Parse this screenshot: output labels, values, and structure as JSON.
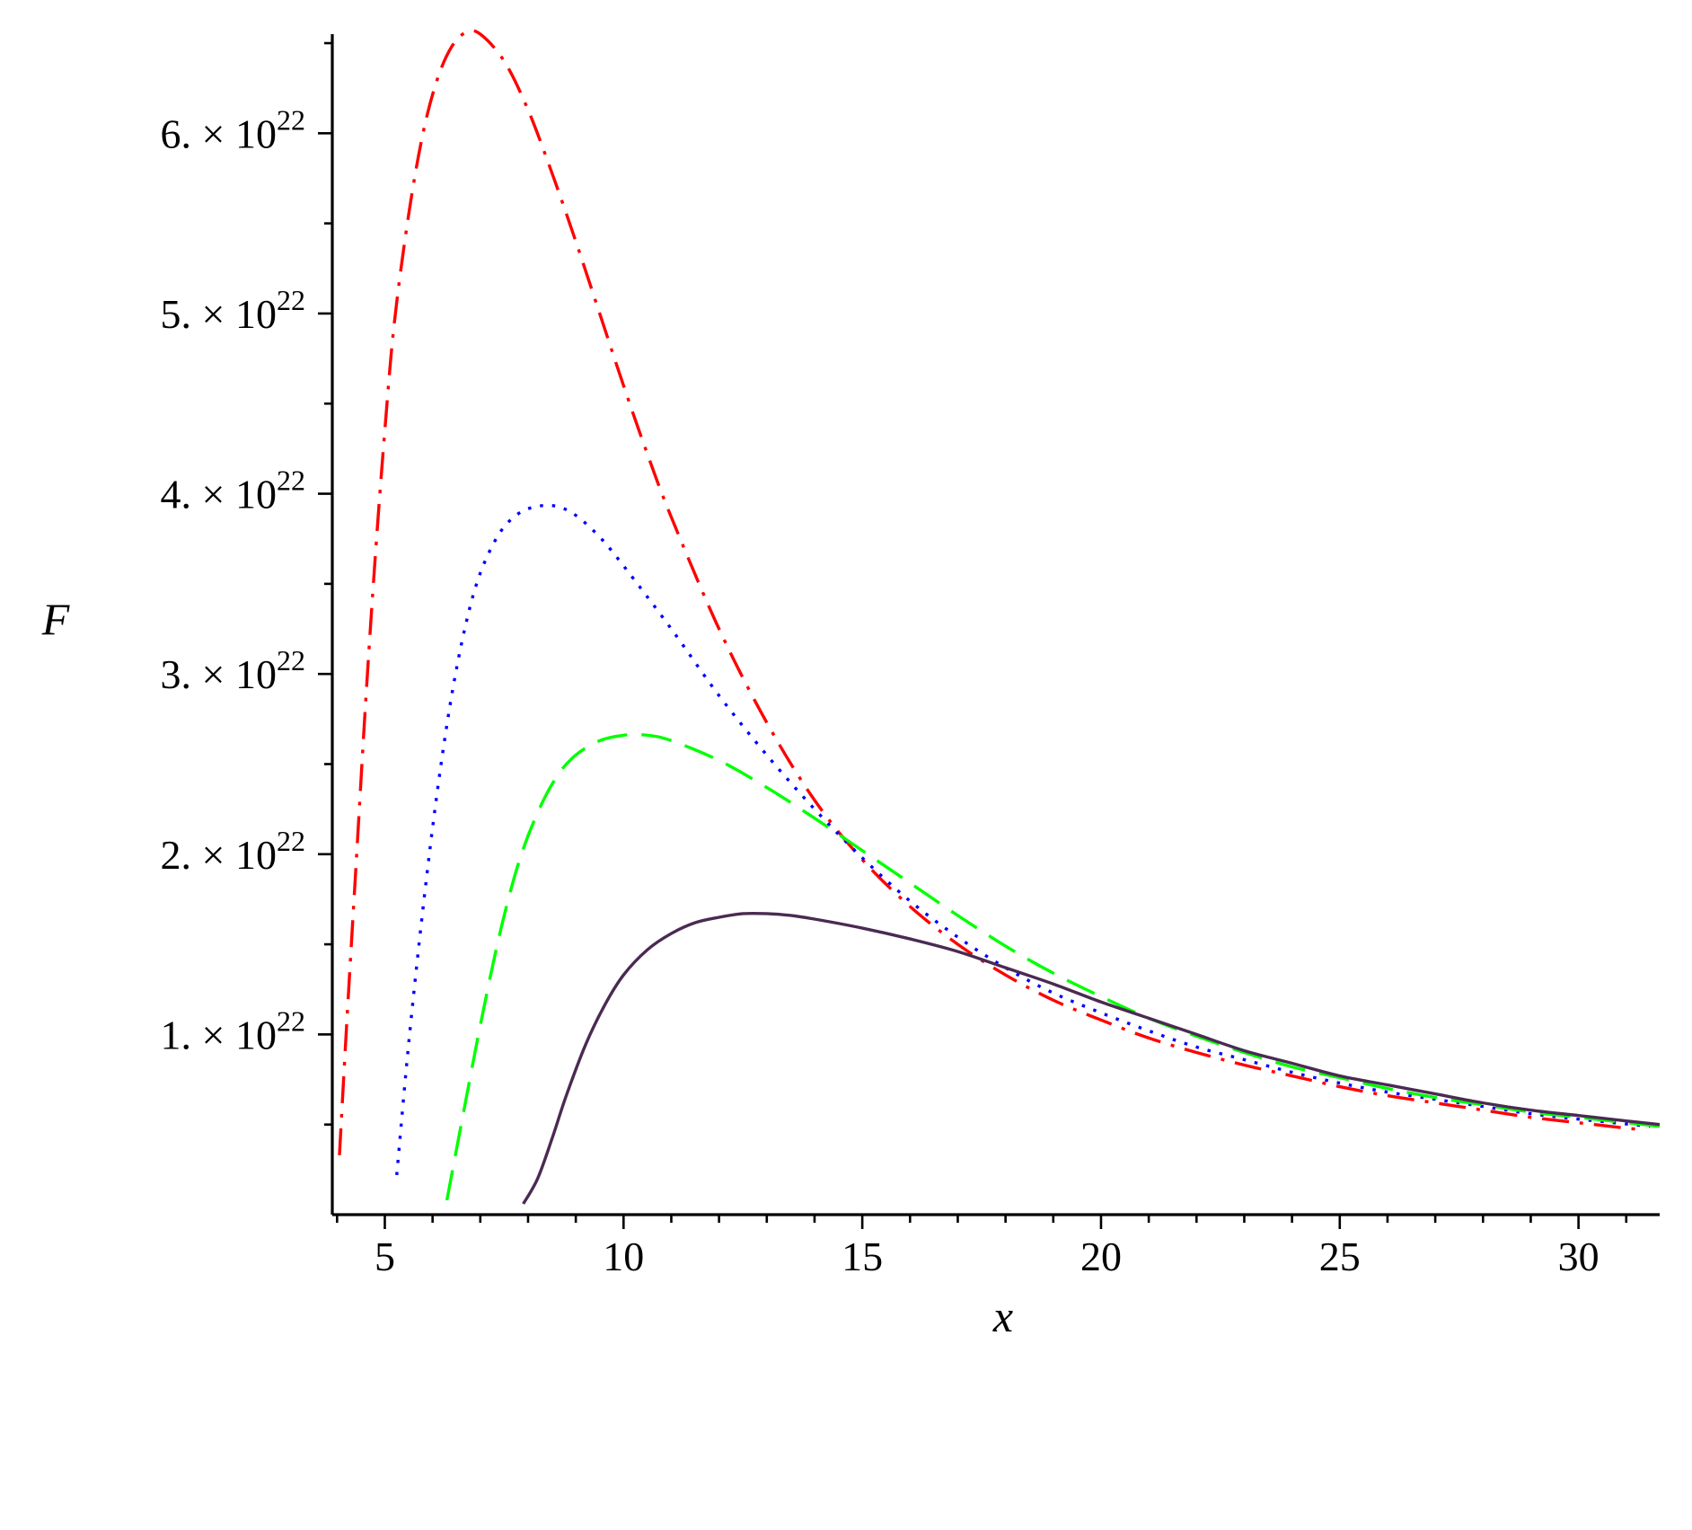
{
  "chart_data": {
    "type": "line",
    "title": "",
    "xlabel": "x",
    "ylabel": "F",
    "xlim": [
      3.9,
      31.7
    ],
    "ylim": [
      0,
      6.55e+22
    ],
    "grid": false,
    "legend": "none",
    "x_ticks": [
      {
        "value": 5,
        "label": "5"
      },
      {
        "value": 10,
        "label": "10"
      },
      {
        "value": 15,
        "label": "15"
      },
      {
        "value": 20,
        "label": "20"
      },
      {
        "value": 25,
        "label": "25"
      },
      {
        "value": 30,
        "label": "30"
      }
    ],
    "y_ticks": [
      {
        "value": 1e+22,
        "mantissa": "1. × 10",
        "exponent": "22"
      },
      {
        "value": 2e+22,
        "mantissa": "2. × 10",
        "exponent": "22"
      },
      {
        "value": 3e+22,
        "mantissa": "3. × 10",
        "exponent": "22"
      },
      {
        "value": 4e+22,
        "mantissa": "4. × 10",
        "exponent": "22"
      },
      {
        "value": 5e+22,
        "mantissa": "5. × 10",
        "exponent": "22"
      },
      {
        "value": 6e+22,
        "mantissa": "6. × 10",
        "exponent": "22"
      }
    ],
    "series": [
      {
        "color": "#ff0000",
        "dash": "dashdot",
        "points": [
          [
            4.05,
            3.3e+21
          ],
          [
            4.2,
            1.05e+22
          ],
          [
            4.4,
            1.95e+22
          ],
          [
            4.6,
            2.85e+22
          ],
          [
            4.8,
            3.65e+22
          ],
          [
            5.0,
            4.35e+22
          ],
          [
            5.2,
            4.95e+22
          ],
          [
            5.5,
            5.55e+22
          ],
          [
            5.8,
            6e+22
          ],
          [
            6.1,
            6.3e+22
          ],
          [
            6.4,
            6.48e+22
          ],
          [
            6.7,
            6.56e+22
          ],
          [
            7.0,
            6.55e+22
          ],
          [
            7.5,
            6.4e+22
          ],
          [
            8.0,
            6.13e+22
          ],
          [
            8.5,
            5.78e+22
          ],
          [
            9.0,
            5.4e+22
          ],
          [
            9.5,
            5e+22
          ],
          [
            10.0,
            4.6e+22
          ],
          [
            10.5,
            4.22e+22
          ],
          [
            11.0,
            3.87e+22
          ],
          [
            12.0,
            3.25e+22
          ],
          [
            13.0,
            2.73e+22
          ],
          [
            14.0,
            2.3e+22
          ],
          [
            15.0,
            1.97e+22
          ],
          [
            16.0,
            1.71e+22
          ],
          [
            17.0,
            1.5e+22
          ],
          [
            18.0,
            1.33e+22
          ],
          [
            19.0,
            1.19e+22
          ],
          [
            20.0,
            1.08e+22
          ],
          [
            21.0,
            9.8e+21
          ],
          [
            22.0,
            9e+21
          ],
          [
            23.0,
            8.3e+21
          ],
          [
            24.0,
            7.7e+21
          ],
          [
            25.0,
            7.1e+21
          ],
          [
            26.0,
            6.6e+21
          ],
          [
            27.0,
            6.2e+21
          ],
          [
            28.0,
            5.8e+21
          ],
          [
            29.0,
            5.4e+21
          ],
          [
            30.0,
            5.1e+21
          ],
          [
            31.0,
            4.8e+21
          ],
          [
            31.4,
            4.7e+21
          ]
        ]
      },
      {
        "color": "#0000ff",
        "dash": "dot",
        "points": [
          [
            5.25,
            2.2e+21
          ],
          [
            5.5,
            9.5e+21
          ],
          [
            5.8,
            1.7e+22
          ],
          [
            6.1,
            2.35e+22
          ],
          [
            6.4,
            2.88e+22
          ],
          [
            6.7,
            3.28e+22
          ],
          [
            7.0,
            3.56e+22
          ],
          [
            7.4,
            3.78e+22
          ],
          [
            7.8,
            3.89e+22
          ],
          [
            8.2,
            3.93e+22
          ],
          [
            8.6,
            3.93e+22
          ],
          [
            9.0,
            3.88e+22
          ],
          [
            9.5,
            3.76e+22
          ],
          [
            10.0,
            3.6e+22
          ],
          [
            11.0,
            3.25e+22
          ],
          [
            12.0,
            2.88e+22
          ],
          [
            13.0,
            2.55e+22
          ],
          [
            14.0,
            2.25e+22
          ],
          [
            15.0,
            1.98e+22
          ],
          [
            16.0,
            1.74e+22
          ],
          [
            17.0,
            1.54e+22
          ],
          [
            18.0,
            1.37e+22
          ],
          [
            19.0,
            1.23e+22
          ],
          [
            20.0,
            1.12e+22
          ],
          [
            21.0,
            1.02e+22
          ],
          [
            22.0,
            9.3e+21
          ],
          [
            23.0,
            8.6e+21
          ],
          [
            24.0,
            7.9e+21
          ],
          [
            25.0,
            7.3e+21
          ],
          [
            26.0,
            6.8e+21
          ],
          [
            27.0,
            6.4e+21
          ],
          [
            28.0,
            6e+21
          ],
          [
            29.0,
            5.6e+21
          ],
          [
            30.0,
            5.3e+21
          ],
          [
            31.5,
            4.9e+21
          ]
        ]
      },
      {
        "color": "#00ff00",
        "dash": "dash",
        "points": [
          [
            6.3,
            8e+20
          ],
          [
            6.6,
            5e+21
          ],
          [
            7.0,
            1.05e+22
          ],
          [
            7.4,
            1.55e+22
          ],
          [
            7.8,
            1.95e+22
          ],
          [
            8.2,
            2.23e+22
          ],
          [
            8.6,
            2.43e+22
          ],
          [
            9.0,
            2.55e+22
          ],
          [
            9.5,
            2.63e+22
          ],
          [
            10.0,
            2.66e+22
          ],
          [
            10.5,
            2.66e+22
          ],
          [
            11.0,
            2.63e+22
          ],
          [
            12.0,
            2.52e+22
          ],
          [
            13.0,
            2.37e+22
          ],
          [
            14.0,
            2.2e+22
          ],
          [
            15.0,
            2.02e+22
          ],
          [
            16.0,
            1.84e+22
          ],
          [
            17.0,
            1.66e+22
          ],
          [
            18.0,
            1.49e+22
          ],
          [
            19.0,
            1.34e+22
          ],
          [
            20.0,
            1.21e+22
          ],
          [
            21.0,
            1.09e+22
          ],
          [
            22.0,
            9.9e+21
          ],
          [
            23.0,
            9e+21
          ],
          [
            24.0,
            8.2e+21
          ],
          [
            25.0,
            7.6e+21
          ],
          [
            26.0,
            7e+21
          ],
          [
            27.0,
            6.5e+21
          ],
          [
            28.0,
            6.1e+21
          ],
          [
            29.0,
            5.7e+21
          ],
          [
            30.0,
            5.4e+21
          ],
          [
            31.7,
            4.9e+21
          ]
        ]
      },
      {
        "color": "#4a2a52",
        "dash": "solid",
        "points": [
          [
            7.9,
            6e+20
          ],
          [
            8.2,
            2e+21
          ],
          [
            8.5,
            4.2e+21
          ],
          [
            8.8,
            6.6e+21
          ],
          [
            9.2,
            9.4e+21
          ],
          [
            9.6,
            1.16e+22
          ],
          [
            10.0,
            1.33e+22
          ],
          [
            10.5,
            1.47e+22
          ],
          [
            11.0,
            1.56e+22
          ],
          [
            11.5,
            1.62e+22
          ],
          [
            12.0,
            1.65e+22
          ],
          [
            12.5,
            1.67e+22
          ],
          [
            13.0,
            1.67e+22
          ],
          [
            13.5,
            1.66e+22
          ],
          [
            14.0,
            1.64e+22
          ],
          [
            15.0,
            1.59e+22
          ],
          [
            16.0,
            1.53e+22
          ],
          [
            17.0,
            1.46e+22
          ],
          [
            18.0,
            1.37e+22
          ],
          [
            19.0,
            1.28e+22
          ],
          [
            20.0,
            1.18e+22
          ],
          [
            21.0,
            1.09e+22
          ],
          [
            22.0,
            1e+22
          ],
          [
            23.0,
            9.1e+21
          ],
          [
            24.0,
            8.4e+21
          ],
          [
            25.0,
            7.7e+21
          ],
          [
            26.0,
            7.2e+21
          ],
          [
            27.0,
            6.7e+21
          ],
          [
            28.0,
            6.2e+21
          ],
          [
            29.0,
            5.8e+21
          ],
          [
            30.0,
            5.5e+21
          ],
          [
            31.0,
            5.2e+21
          ],
          [
            31.7,
            5e+21
          ]
        ]
      }
    ]
  }
}
